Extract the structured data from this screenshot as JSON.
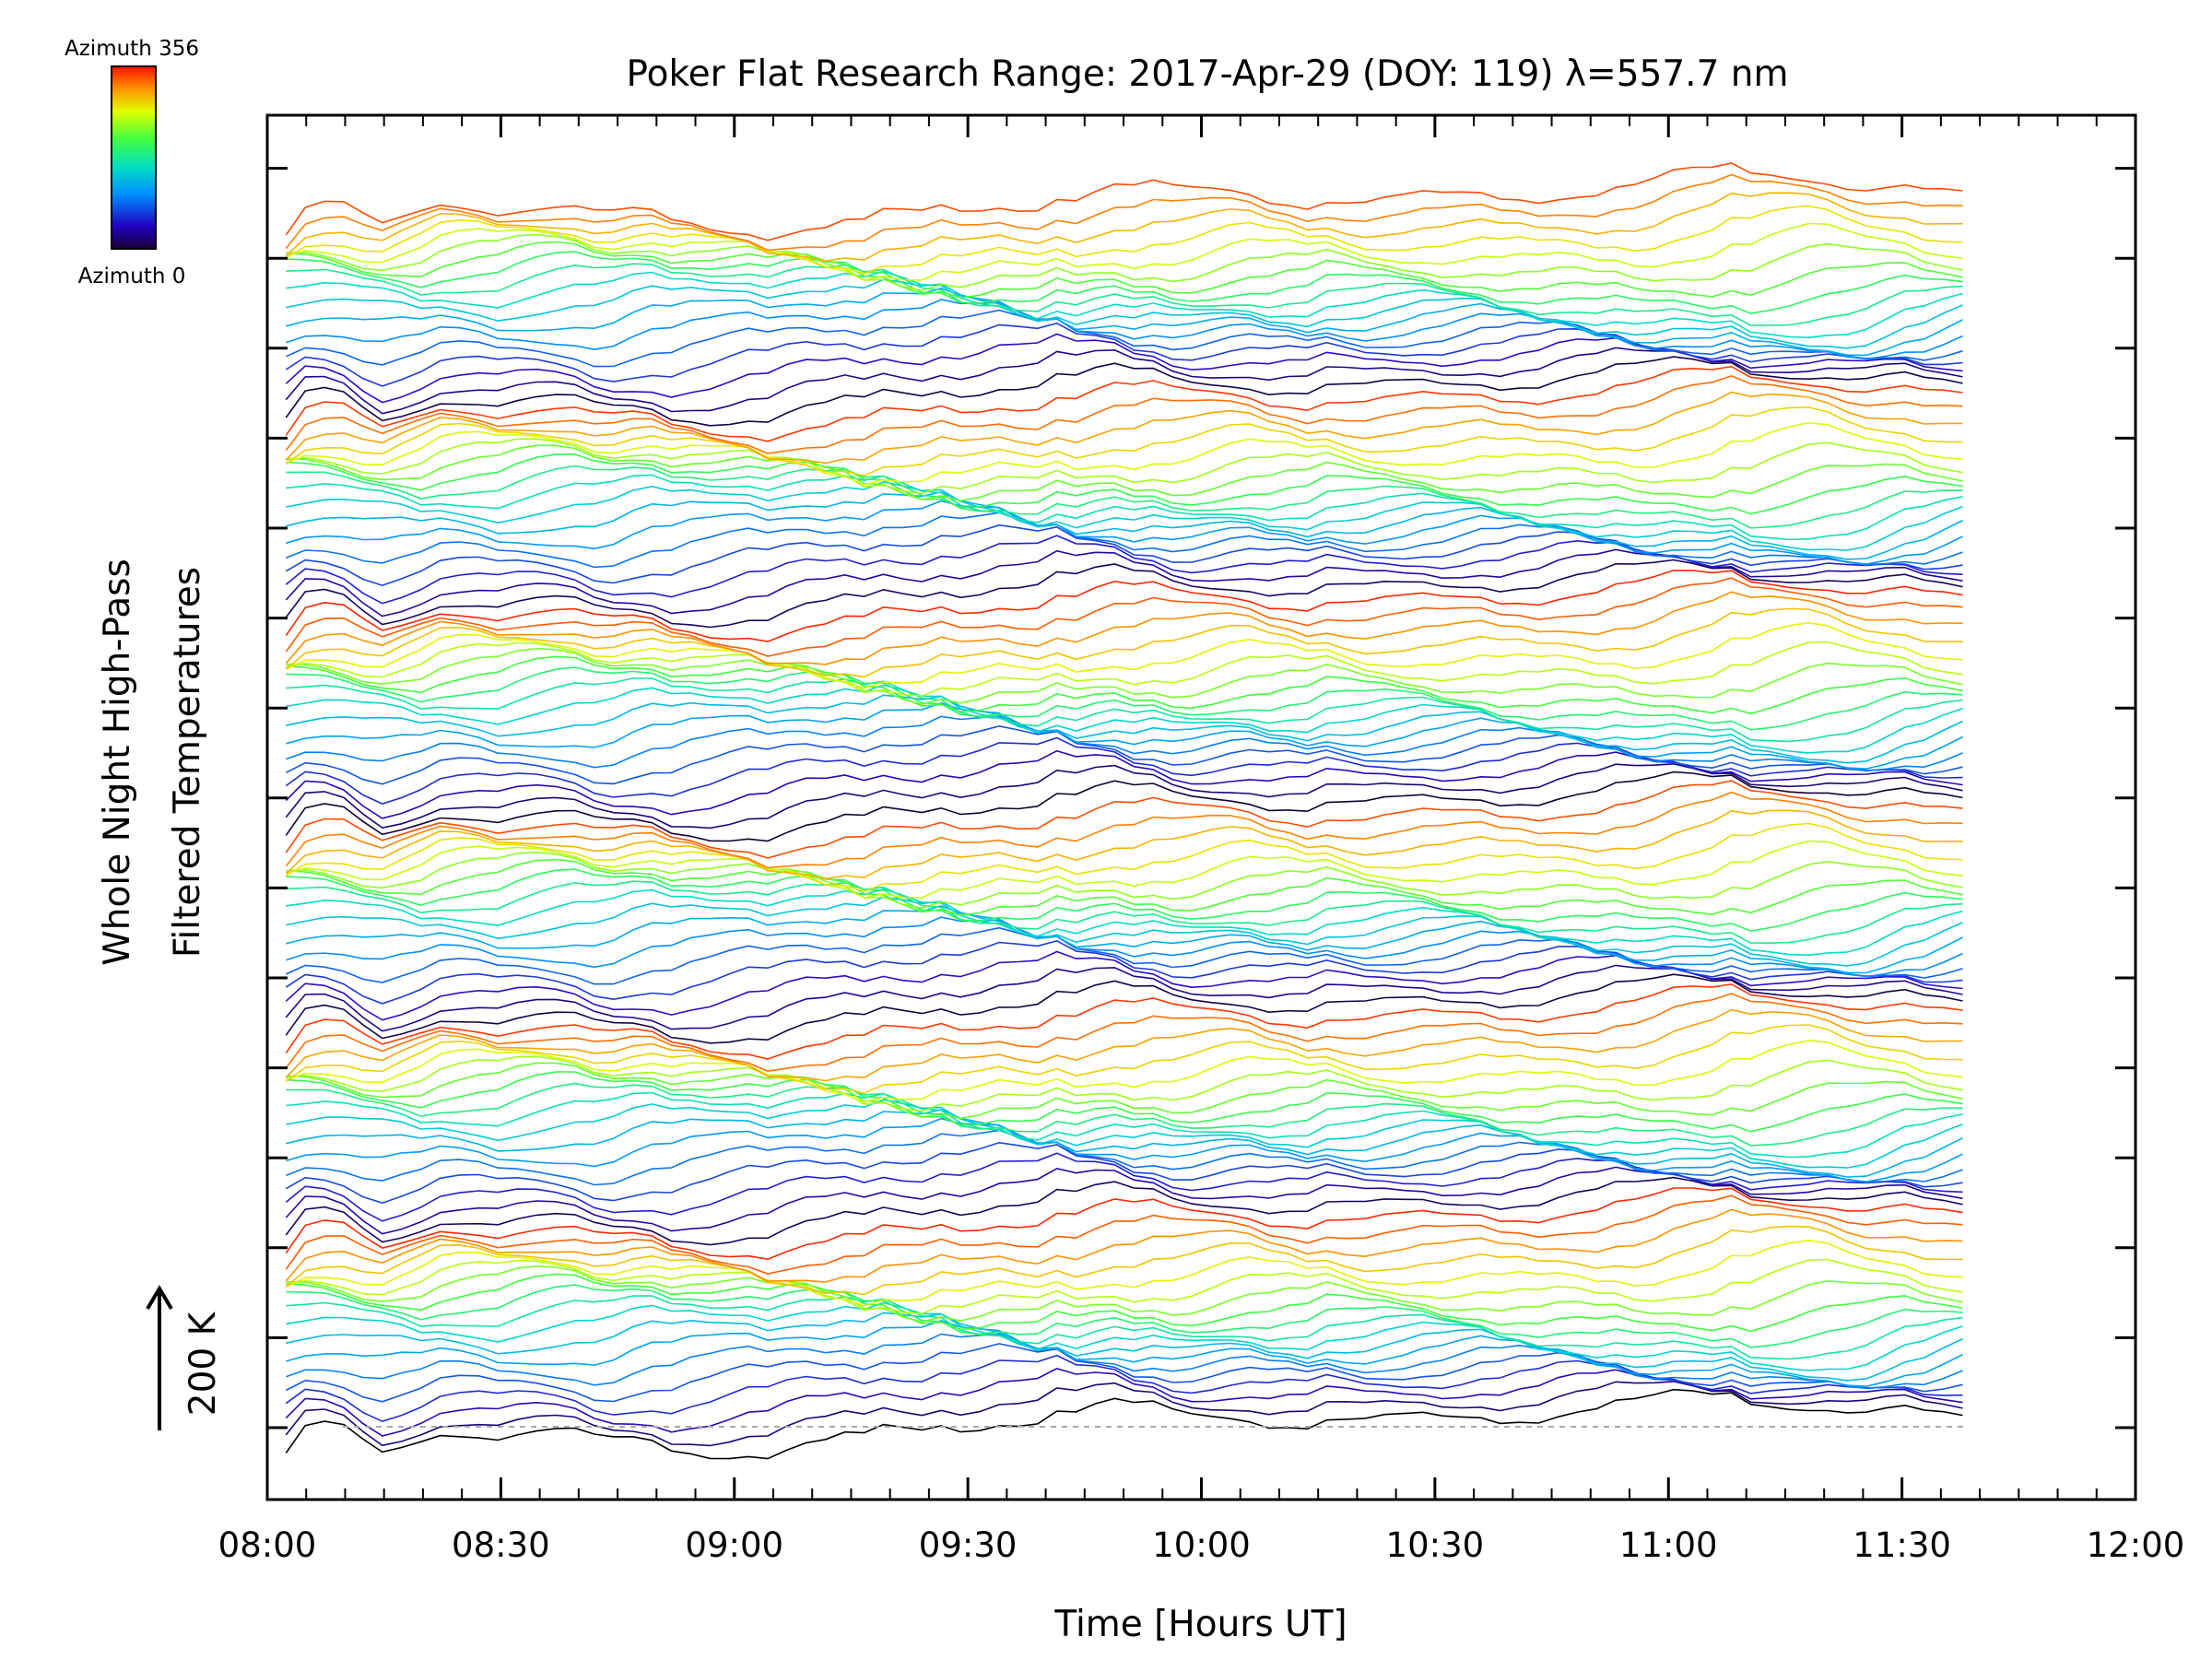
{
  "chart_data": {
    "type": "line",
    "title": "Poker Flat Research Range: 2017-Apr-29 (DOY: 119) λ=557.7 nm",
    "xlabel": "Time [Hours UT]",
    "ylabel_line1": "Whole Night High-Pass",
    "ylabel_line2": "Filtered Temperatures",
    "scale_label": "200 K",
    "x_ticks": [
      "08:00",
      "08:30",
      "09:00",
      "09:30",
      "10:00",
      "10:30",
      "11:00",
      "11:30",
      "12:00"
    ],
    "x_range_hours": [
      8.0,
      12.0
    ],
    "data_end_hours": 11.63,
    "colorbar": {
      "top_label": "Azimuth 356",
      "bottom_label": "Azimuth 0",
      "range": [
        0,
        356
      ],
      "colormap": "rainbow"
    },
    "grid": false,
    "baseline_dashed": true,
    "stack_count": 110,
    "azimuth_sweep_count": 6
  }
}
